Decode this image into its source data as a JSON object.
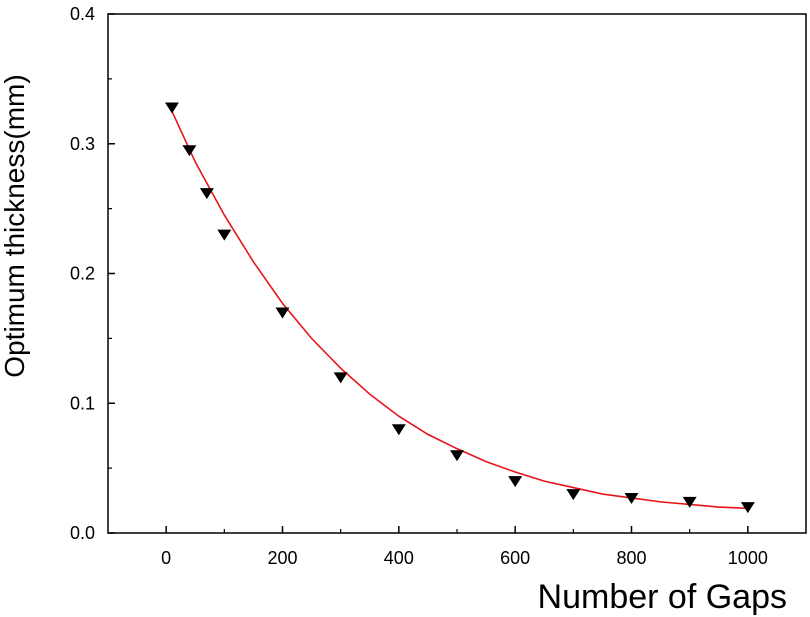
{
  "chart_data": {
    "type": "scatter",
    "title": "",
    "xlabel": "Number of Gaps",
    "ylabel": "Optimum thickness(mm)",
    "xlim": [
      -100,
      1100
    ],
    "ylim": [
      0.0,
      0.4
    ],
    "x_ticks": [
      0,
      200,
      400,
      600,
      800,
      1000
    ],
    "y_ticks": [
      0.0,
      0.1,
      0.2,
      0.3,
      0.4
    ],
    "x_tick_labels": [
      "0",
      "200",
      "400",
      "600",
      "800",
      "1000"
    ],
    "y_tick_labels": [
      "0.0",
      "0.1",
      "0.2",
      "0.3",
      "0.4"
    ],
    "grid": false,
    "legend": "none",
    "series": [
      {
        "marker": "triangle-down",
        "color": "#000000",
        "x": [
          10,
          40,
          70,
          100,
          200,
          300,
          400,
          500,
          600,
          700,
          800,
          900,
          1000
        ],
        "y": [
          0.328,
          0.295,
          0.262,
          0.23,
          0.17,
          0.12,
          0.08,
          0.06,
          0.04,
          0.03,
          0.027,
          0.024,
          0.02
        ]
      },
      {
        "type": "line",
        "color": "#e8141b",
        "x": [
          10,
          50,
          100,
          150,
          200,
          250,
          300,
          350,
          400,
          450,
          500,
          550,
          600,
          650,
          700,
          750,
          800,
          850,
          900,
          950,
          1000
        ],
        "y": [
          0.325,
          0.286,
          0.245,
          0.209,
          0.177,
          0.15,
          0.127,
          0.107,
          0.09,
          0.076,
          0.065,
          0.055,
          0.047,
          0.04,
          0.035,
          0.03,
          0.027,
          0.024,
          0.022,
          0.02,
          0.019
        ]
      }
    ]
  }
}
